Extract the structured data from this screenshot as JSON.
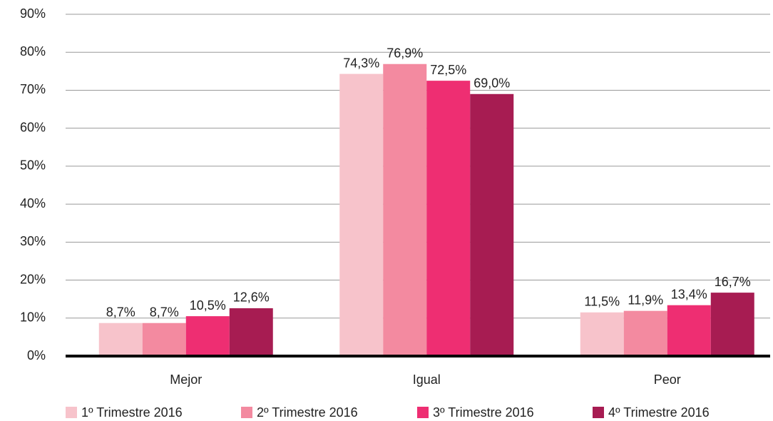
{
  "chart_data": {
    "type": "bar",
    "categories": [
      "Mejor",
      "Igual",
      "Peor"
    ],
    "series": [
      {
        "name": "1º Trimestre 2016",
        "color": "#f7c3cb",
        "values": [
          8.7,
          74.3,
          11.5
        ],
        "value_labels": [
          "8,7%",
          "74,3%",
          "11,5%"
        ]
      },
      {
        "name": "2º Trimestre 2016",
        "color": "#f38aa0",
        "values": [
          8.7,
          76.9,
          11.9
        ],
        "value_labels": [
          "8,7%",
          "76,9%",
          "11,9%"
        ]
      },
      {
        "name": "3º Trimestre 2016",
        "color": "#ee2e72",
        "values": [
          10.5,
          72.5,
          13.4
        ],
        "value_labels": [
          "10,5%",
          "72,5%",
          "13,4%"
        ]
      },
      {
        "name": "4º Trimestre 2016",
        "color": "#a71c52",
        "values": [
          12.6,
          69.0,
          16.7
        ],
        "value_labels": [
          "12,6%",
          "69,0%",
          "16,7%"
        ]
      }
    ],
    "ylim": [
      0,
      90
    ],
    "yticks": [
      {
        "value": 0,
        "label": "0%"
      },
      {
        "value": 10,
        "label": "10%"
      },
      {
        "value": 20,
        "label": "20%"
      },
      {
        "value": 30,
        "label": "30%"
      },
      {
        "value": 40,
        "label": "40%"
      },
      {
        "value": 50,
        "label": "50%"
      },
      {
        "value": 60,
        "label": "60%"
      },
      {
        "value": 70,
        "label": "70%"
      },
      {
        "value": 80,
        "label": "80%"
      },
      {
        "value": 90,
        "label": "90%"
      }
    ],
    "grid": true,
    "legend": "bottom"
  }
}
